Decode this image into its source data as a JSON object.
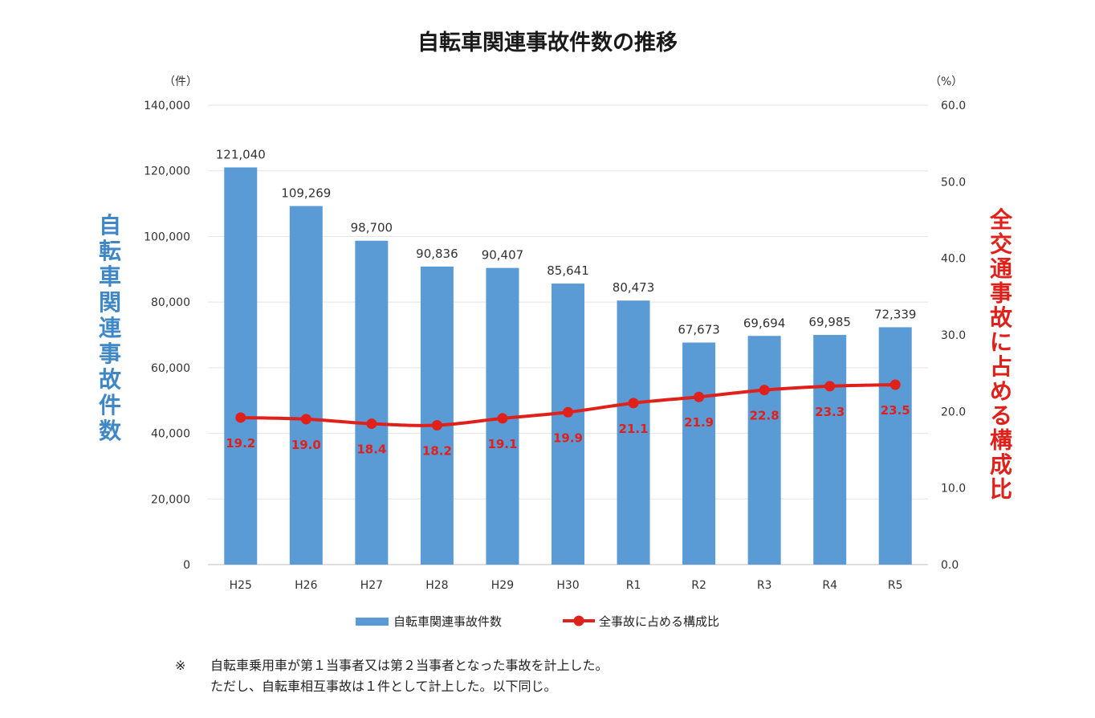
{
  "chart_data": {
    "type": "bar+line",
    "title": "自転車関連事故件数の推移",
    "categories": [
      "H25",
      "H26",
      "H27",
      "H28",
      "H29",
      "H30",
      "R1",
      "R2",
      "R3",
      "R4",
      "R5"
    ],
    "series": [
      {
        "name": "自転車関連事故件数",
        "type": "bar",
        "axis": "left",
        "color": "#5b9bd5",
        "values": [
          121040,
          109269,
          98700,
          90836,
          90407,
          85641,
          80473,
          67673,
          69694,
          69985,
          72339
        ],
        "labels": [
          "121,040",
          "109,269",
          "98,700",
          "90,836",
          "90,407",
          "85,641",
          "80,473",
          "67,673",
          "69,694",
          "69,985",
          "72,339"
        ]
      },
      {
        "name": "全事故に占める構成比",
        "type": "line",
        "axis": "right",
        "color": "#e0201a",
        "values": [
          19.2,
          19.0,
          18.4,
          18.2,
          19.1,
          19.9,
          21.1,
          21.9,
          22.8,
          23.3,
          23.5
        ],
        "labels": [
          "19.2",
          "19.0",
          "18.4",
          "18.2",
          "19.1",
          "19.9",
          "21.1",
          "21.9",
          "22.8",
          "23.3",
          "23.5"
        ]
      }
    ],
    "y_left": {
      "title": "自転車関連事故件数",
      "unit": "（件）",
      "ylim": [
        0,
        140000
      ],
      "ticks": [
        "0",
        "20,000",
        "40,000",
        "60,000",
        "80,000",
        "100,000",
        "120,000",
        "140,000"
      ]
    },
    "y_right": {
      "title": "全交通事故に占める構成比",
      "unit": "（%）",
      "ylim": [
        0,
        60
      ],
      "ticks": [
        "0.0",
        "10.0",
        "20.0",
        "30.0",
        "40.0",
        "50.0",
        "60.0"
      ]
    },
    "grid": true,
    "legend_position": "bottom"
  },
  "notes": {
    "mark": "※",
    "line1": "自転車乗用車が第１当事者又は第２当事者となった事故を計上した。",
    "line2": "ただし、自転車相互事故は１件として計上した。以下同じ。"
  }
}
